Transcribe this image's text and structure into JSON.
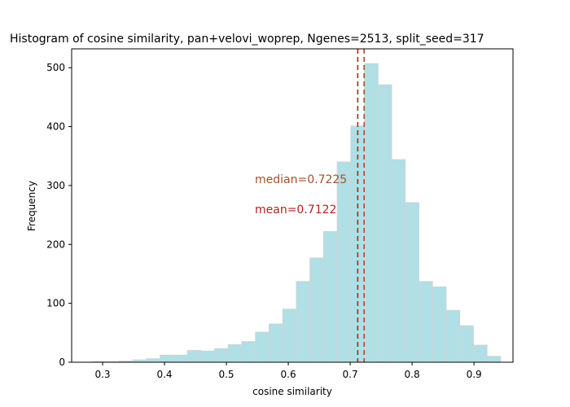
{
  "chart_data": {
    "type": "histogram",
    "title": "Histogram of cosine similarity, pan+velovi_woprep, Ngenes=2513, split_seed=317",
    "xlabel": "cosine similarity",
    "ylabel": "Frequency",
    "xlim": [
      0.25,
      0.963
    ],
    "ylim": [
      0,
      532
    ],
    "xticks": [
      0.3,
      0.4,
      0.5,
      0.6,
      0.7,
      0.8,
      0.9
    ],
    "yticks": [
      0,
      100,
      200,
      300,
      400,
      500
    ],
    "bin_edges": [
      0.283,
      0.305,
      0.327,
      0.349,
      0.371,
      0.393,
      0.415,
      0.437,
      0.459,
      0.481,
      0.503,
      0.525,
      0.547,
      0.569,
      0.591,
      0.613,
      0.635,
      0.657,
      0.679,
      0.701,
      0.723,
      0.745,
      0.767,
      0.789,
      0.811,
      0.833,
      0.855,
      0.877,
      0.899,
      0.921,
      0.943
    ],
    "counts": [
      1,
      1,
      2,
      4,
      6,
      12,
      12,
      20,
      19,
      23,
      30,
      35,
      51,
      65,
      90,
      137,
      177,
      222,
      340,
      401,
      507,
      471,
      344,
      271,
      137,
      128,
      88,
      62,
      29,
      10
    ],
    "bar_color": "#b0dfe5",
    "bar_edge_color": "#d3d3d3",
    "median": {
      "value": 0.7225,
      "label": "median=0.7225",
      "color": "#a0522d"
    },
    "mean": {
      "value": 0.7122,
      "label": "mean=0.7122",
      "color": "#b22222"
    }
  }
}
